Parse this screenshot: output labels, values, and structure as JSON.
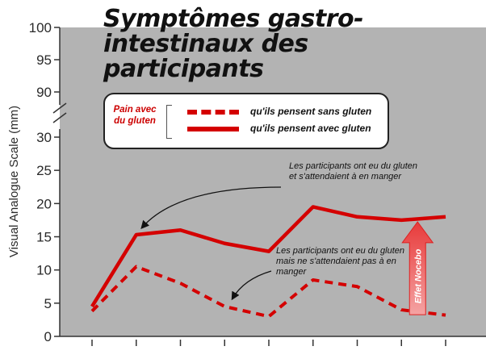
{
  "chart_data": {
    "type": "line",
    "title": "Symptômes gastro-intestinaux des participants",
    "ylabel": "Visual Analogue Scale (mm)",
    "xlabel": "",
    "y_ticks_lower": [
      0,
      5,
      10,
      15,
      20,
      25,
      30
    ],
    "y_ticks_upper": [
      90,
      95,
      100
    ],
    "ylim": [
      0,
      100
    ],
    "axis_break": true,
    "x": [
      1,
      2,
      3,
      4,
      5,
      6,
      7,
      8,
      9
    ],
    "series": [
      {
        "name": "qu'ils pensent sans gluten",
        "style": "dashed",
        "color": "#d40000",
        "values": [
          3.8,
          10.5,
          8.0,
          4.5,
          3.0,
          8.5,
          7.5,
          4.0,
          3.2
        ]
      },
      {
        "name": "qu'ils pensent avec gluten",
        "style": "solid",
        "color": "#d40000",
        "values": [
          4.5,
          15.3,
          16.0,
          14.0,
          12.8,
          19.5,
          18.0,
          17.5,
          18.0
        ]
      }
    ],
    "legend": {
      "heading": "Pain avec du gluten",
      "placement": "top-center"
    },
    "annotations": [
      "Les participants ont eu du gluten et s'attendaient à en manger",
      "Les participants ont eu du gluten mais ne s'attendaient pas à en manger"
    ],
    "nocebo_label": "Effet Nocebo",
    "background": "#b3b3b3",
    "grid": false
  }
}
